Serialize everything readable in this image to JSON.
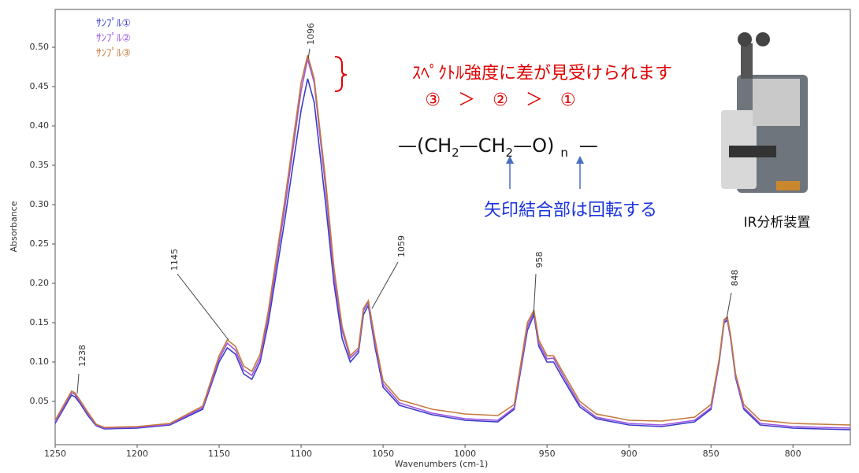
{
  "chart_data": {
    "type": "line",
    "x_label": "Wavenumbers (cm-1)",
    "y_label": "Absorbance",
    "x": [
      1250,
      1240,
      1238,
      1235,
      1230,
      1225,
      1220,
      1200,
      1180,
      1160,
      1150,
      1145,
      1140,
      1135,
      1130,
      1125,
      1120,
      1110,
      1100,
      1096,
      1092,
      1085,
      1080,
      1075,
      1070,
      1065,
      1062,
      1059,
      1055,
      1050,
      1040,
      1020,
      1000,
      980,
      970,
      962,
      958,
      955,
      950,
      946,
      940,
      930,
      920,
      900,
      880,
      860,
      850,
      845,
      842,
      840,
      838,
      835,
      830,
      820,
      800,
      765
    ],
    "series": [
      {
        "name": "ｻﾝﾌﾟﾙ①",
        "color": "#3c3cc8",
        "values": [
          0.022,
          0.058,
          0.056,
          0.048,
          0.032,
          0.019,
          0.015,
          0.016,
          0.02,
          0.04,
          0.1,
          0.118,
          0.11,
          0.085,
          0.078,
          0.1,
          0.15,
          0.28,
          0.42,
          0.46,
          0.43,
          0.3,
          0.2,
          0.13,
          0.1,
          0.112,
          0.16,
          0.172,
          0.12,
          0.068,
          0.045,
          0.033,
          0.026,
          0.024,
          0.04,
          0.14,
          0.16,
          0.12,
          0.1,
          0.1,
          0.078,
          0.043,
          0.028,
          0.02,
          0.018,
          0.024,
          0.04,
          0.1,
          0.15,
          0.153,
          0.13,
          0.08,
          0.04,
          0.02,
          0.016,
          0.014
        ]
      },
      {
        "name": "ｻﾝﾌﾟﾙ②",
        "color": "#9d55e0",
        "values": [
          0.024,
          0.061,
          0.059,
          0.05,
          0.034,
          0.02,
          0.016,
          0.017,
          0.021,
          0.042,
          0.104,
          0.124,
          0.115,
          0.09,
          0.083,
          0.105,
          0.158,
          0.295,
          0.445,
          0.485,
          0.455,
          0.32,
          0.21,
          0.14,
          0.105,
          0.115,
          0.165,
          0.176,
          0.125,
          0.072,
          0.048,
          0.035,
          0.028,
          0.026,
          0.042,
          0.145,
          0.164,
          0.124,
          0.104,
          0.105,
          0.082,
          0.046,
          0.03,
          0.022,
          0.02,
          0.026,
          0.042,
          0.102,
          0.152,
          0.155,
          0.132,
          0.082,
          0.042,
          0.022,
          0.018,
          0.016
        ]
      },
      {
        "name": "ｻﾝﾌﾟﾙ③",
        "color": "#c47a3c",
        "values": [
          0.026,
          0.063,
          0.061,
          0.052,
          0.036,
          0.021,
          0.017,
          0.018,
          0.022,
          0.044,
          0.108,
          0.128,
          0.12,
          0.095,
          0.088,
          0.11,
          0.165,
          0.305,
          0.455,
          0.49,
          0.46,
          0.33,
          0.22,
          0.145,
          0.108,
          0.118,
          0.168,
          0.178,
          0.13,
          0.076,
          0.052,
          0.04,
          0.034,
          0.032,
          0.046,
          0.15,
          0.166,
          0.128,
          0.108,
          0.108,
          0.086,
          0.05,
          0.034,
          0.026,
          0.025,
          0.03,
          0.046,
          0.104,
          0.154,
          0.157,
          0.134,
          0.085,
          0.046,
          0.026,
          0.022,
          0.02
        ]
      }
    ],
    "xlim": [
      1250,
      765
    ],
    "xticks": [
      1250,
      1200,
      1150,
      1100,
      1050,
      1000,
      950,
      900,
      850,
      800
    ],
    "ylim": [
      -0.005,
      0.548
    ],
    "yticks": [
      0.05,
      {
        "value": 0.1,
        "label": "0.10"
      },
      0.15,
      {
        "value": 0.2,
        "label": "0.20"
      },
      0.25,
      {
        "value": 0.3,
        "label": "0.30"
      },
      0.35,
      {
        "value": 0.4,
        "label": "0.40"
      },
      0.45,
      {
        "value": 0.5,
        "label": "0.50"
      }
    ],
    "peak_labels": [
      1238,
      1145,
      1096,
      1059,
      958,
      848
    ],
    "annotation": "ｽﾍﾟｸﾄﾙ強度に差が見受けられます",
    "order": "③　＞　②　＞　①",
    "formula": [
      "—(CH",
      "2",
      "—CH",
      "2",
      "—O)",
      "n",
      "—"
    ],
    "rotation_note": "矢印結合部は回転する",
    "instrument_caption": "IR分析装置"
  }
}
